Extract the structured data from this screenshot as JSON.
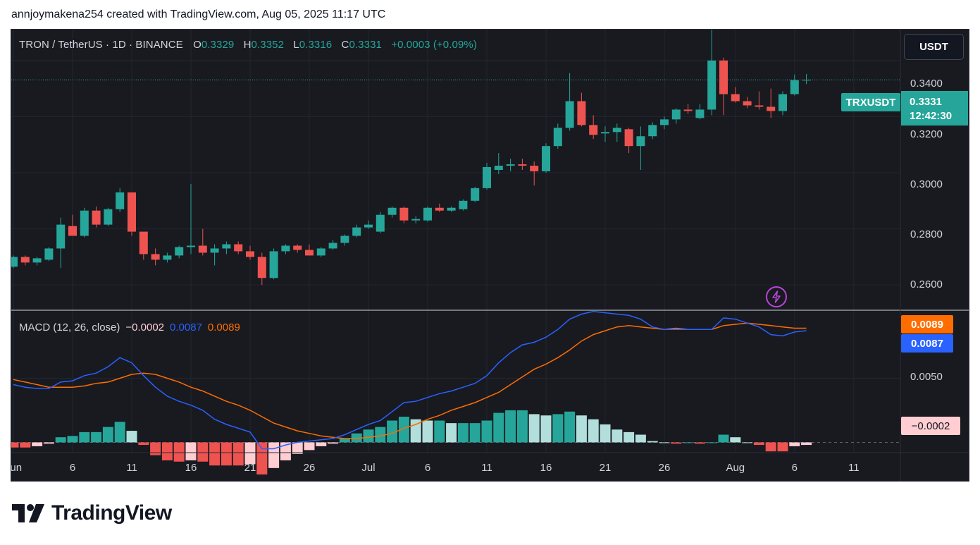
{
  "caption": "annjoymakena254 created with TradingView.com, Aug 05, 2025 11:17 UTC",
  "legend": {
    "symbol_line": "TRON / TetherUS · 1D · BINANCE",
    "o_label": "O",
    "o_value": "0.3329",
    "h_label": "H",
    "h_value": "0.3352",
    "l_label": "L",
    "l_value": "0.3316",
    "c_label": "C",
    "c_value": "0.3331",
    "change": "+0.0003 (+0.09%)"
  },
  "currency_button": "USDT",
  "symbol_badge": "TRXUSDT",
  "last_price": "0.3331",
  "countdown": "12:42:30",
  "macd_legend": {
    "title": "MACD (12, 26, close)",
    "hist": "−0.0002",
    "macd": "0.0087",
    "signal": "0.0089"
  },
  "badges": {
    "signal": "0.0089",
    "macd": "0.0087",
    "hist": "−0.0002"
  },
  "price_ticks": [
    "0.3400",
    "0.3200",
    "0.3000",
    "0.2800",
    "0.2600"
  ],
  "macd_ticks": [
    "0.0050"
  ],
  "x_ticks": [
    "Jun",
    "6",
    "11",
    "16",
    "21",
    "26",
    "Jul",
    "6",
    "11",
    "16",
    "21",
    "26",
    "Aug",
    "6",
    "11"
  ],
  "brand": "TradingView",
  "colors": {
    "up": "#26a69a",
    "down": "#ef5350",
    "macd": "#2962ff",
    "signal": "#ff6d00",
    "hist_up_strong": "#26a69a",
    "hist_up_weak": "#b2dfdb",
    "hist_down_strong": "#ef5350",
    "hist_down_weak": "#ffcdd2"
  },
  "chart_data": {
    "type": "candlestick",
    "title": "TRON / TetherUS · 1D · BINANCE",
    "start_date": "2025-06-01",
    "ylim": [
      0.251,
      0.351
    ],
    "x_tick_dates": [
      "2025-06-01",
      "2025-06-06",
      "2025-06-11",
      "2025-06-16",
      "2025-06-21",
      "2025-06-26",
      "2025-07-01",
      "2025-07-06",
      "2025-07-11",
      "2025-07-16",
      "2025-07-21",
      "2025-07-26",
      "2025-08-01",
      "2025-08-06",
      "2025-08-11"
    ],
    "ohlc": [
      [
        0.2665,
        0.2705,
        0.266,
        0.27
      ],
      [
        0.27,
        0.2705,
        0.267,
        0.268
      ],
      [
        0.268,
        0.27,
        0.267,
        0.2695
      ],
      [
        0.269,
        0.2735,
        0.2685,
        0.273
      ],
      [
        0.273,
        0.284,
        0.266,
        0.2815
      ],
      [
        0.281,
        0.285,
        0.2775,
        0.2775
      ],
      [
        0.2775,
        0.2875,
        0.277,
        0.2865
      ],
      [
        0.2865,
        0.288,
        0.2805,
        0.2815
      ],
      [
        0.2815,
        0.2875,
        0.281,
        0.287
      ],
      [
        0.287,
        0.2945,
        0.286,
        0.293
      ],
      [
        0.293,
        0.293,
        0.2775,
        0.279
      ],
      [
        0.279,
        0.2785,
        0.269,
        0.271
      ],
      [
        0.271,
        0.273,
        0.267,
        0.269
      ],
      [
        0.269,
        0.2715,
        0.268,
        0.2705
      ],
      [
        0.2705,
        0.274,
        0.2695,
        0.2735
      ],
      [
        0.2735,
        0.296,
        0.271,
        0.274
      ],
      [
        0.274,
        0.28,
        0.2705,
        0.2715
      ],
      [
        0.2715,
        0.2745,
        0.267,
        0.273
      ],
      [
        0.273,
        0.2755,
        0.271,
        0.2745
      ],
      [
        0.2745,
        0.2755,
        0.271,
        0.272
      ],
      [
        0.272,
        0.274,
        0.269,
        0.27
      ],
      [
        0.27,
        0.2715,
        0.26,
        0.2625
      ],
      [
        0.2625,
        0.273,
        0.262,
        0.272
      ],
      [
        0.272,
        0.2745,
        0.271,
        0.274
      ],
      [
        0.274,
        0.2745,
        0.2715,
        0.2725
      ],
      [
        0.2725,
        0.2745,
        0.271,
        0.2705
      ],
      [
        0.2705,
        0.2735,
        0.27,
        0.273
      ],
      [
        0.273,
        0.276,
        0.2725,
        0.275
      ],
      [
        0.275,
        0.278,
        0.274,
        0.2775
      ],
      [
        0.2775,
        0.2815,
        0.277,
        0.2805
      ],
      [
        0.2805,
        0.283,
        0.28,
        0.2815
      ],
      [
        0.279,
        0.286,
        0.2785,
        0.285
      ],
      [
        0.285,
        0.288,
        0.284,
        0.2875
      ],
      [
        0.2875,
        0.288,
        0.282,
        0.283
      ],
      [
        0.283,
        0.2845,
        0.282,
        0.2835
      ],
      [
        0.283,
        0.288,
        0.2825,
        0.2875
      ],
      [
        0.2875,
        0.289,
        0.286,
        0.2865
      ],
      [
        0.2865,
        0.288,
        0.286,
        0.2875
      ],
      [
        0.287,
        0.2905,
        0.2865,
        0.29
      ],
      [
        0.29,
        0.295,
        0.2895,
        0.2945
      ],
      [
        0.2945,
        0.3035,
        0.294,
        0.302
      ],
      [
        0.301,
        0.307,
        0.2995,
        0.3025
      ],
      [
        0.3025,
        0.305,
        0.3005,
        0.303
      ],
      [
        0.303,
        0.305,
        0.301,
        0.3025
      ],
      [
        0.3025,
        0.304,
        0.2955,
        0.3005
      ],
      [
        0.3005,
        0.3105,
        0.3,
        0.3095
      ],
      [
        0.3095,
        0.3175,
        0.3085,
        0.316
      ],
      [
        0.316,
        0.3355,
        0.315,
        0.3255
      ],
      [
        0.3255,
        0.3285,
        0.3165,
        0.317
      ],
      [
        0.317,
        0.3205,
        0.312,
        0.3135
      ],
      [
        0.314,
        0.3165,
        0.311,
        0.3145
      ],
      [
        0.3145,
        0.3175,
        0.311,
        0.316
      ],
      [
        0.3155,
        0.316,
        0.307,
        0.3095
      ],
      [
        0.3095,
        0.3165,
        0.301,
        0.313
      ],
      [
        0.313,
        0.318,
        0.312,
        0.317
      ],
      [
        0.317,
        0.32,
        0.3155,
        0.319
      ],
      [
        0.319,
        0.323,
        0.3175,
        0.3225
      ],
      [
        0.3225,
        0.3245,
        0.321,
        0.322
      ],
      [
        0.3195,
        0.3245,
        0.319,
        0.3225
      ],
      [
        0.3225,
        0.351,
        0.3205,
        0.34
      ],
      [
        0.34,
        0.341,
        0.3205,
        0.328
      ],
      [
        0.328,
        0.3305,
        0.325,
        0.3255
      ],
      [
        0.3255,
        0.327,
        0.323,
        0.324
      ],
      [
        0.324,
        0.329,
        0.3225,
        0.3235
      ],
      [
        0.3235,
        0.33,
        0.3195,
        0.322
      ],
      [
        0.322,
        0.329,
        0.3205,
        0.328
      ],
      [
        0.328,
        0.335,
        0.3275,
        0.333
      ],
      [
        0.3329,
        0.3352,
        0.3316,
        0.3331
      ]
    ],
    "macd_ylim": [
      -0.0008,
      0.0103
    ],
    "macd": [
      0.0045,
      0.0043,
      0.0042,
      0.0042,
      0.0047,
      0.0048,
      0.0052,
      0.0054,
      0.0059,
      0.0066,
      0.0062,
      0.0052,
      0.0043,
      0.0036,
      0.0032,
      0.0029,
      0.0025,
      0.0018,
      0.0014,
      0.0011,
      0.0008,
      -0.0005,
      -0.0005,
      -0.0002,
      0.0,
      0.0001,
      0.0002,
      0.0003,
      0.0006,
      0.001,
      0.0014,
      0.0017,
      0.0024,
      0.0031,
      0.0032,
      0.0035,
      0.0038,
      0.004,
      0.0043,
      0.0046,
      0.0052,
      0.0062,
      0.007,
      0.0076,
      0.0078,
      0.0082,
      0.0088,
      0.0096,
      0.01,
      0.0102,
      0.0101,
      0.01,
      0.0099,
      0.0096,
      0.009,
      0.0088,
      0.0088,
      0.0088,
      0.0088,
      0.0088,
      0.0097,
      0.0096,
      0.0093,
      0.009,
      0.0084,
      0.0083,
      0.0086,
      0.0087
    ],
    "signal": [
      0.0049,
      0.0047,
      0.0045,
      0.0043,
      0.0043,
      0.0043,
      0.0044,
      0.0046,
      0.0047,
      0.005,
      0.0053,
      0.0054,
      0.0053,
      0.005,
      0.0047,
      0.0043,
      0.004,
      0.0036,
      0.0032,
      0.0029,
      0.0025,
      0.002,
      0.0015,
      0.0012,
      0.0009,
      0.0007,
      0.0005,
      0.0004,
      0.0003,
      0.0003,
      0.0004,
      0.0005,
      0.0007,
      0.0011,
      0.0014,
      0.0018,
      0.0021,
      0.0025,
      0.0028,
      0.0031,
      0.0035,
      0.0039,
      0.0045,
      0.0051,
      0.0057,
      0.0061,
      0.0066,
      0.0072,
      0.0079,
      0.0084,
      0.0087,
      0.009,
      0.0091,
      0.009,
      0.0089,
      0.0088,
      0.0089,
      0.0088,
      0.0088,
      0.0088,
      0.0091,
      0.0092,
      0.0093,
      0.0092,
      0.0091,
      0.009,
      0.0089,
      0.0089
    ],
    "histogram": [
      -0.0004,
      -0.0004,
      -0.0003,
      -0.0001,
      0.0004,
      0.0005,
      0.0008,
      0.0008,
      0.0012,
      0.0016,
      0.0009,
      -0.0002,
      -0.001,
      -0.0014,
      -0.0015,
      -0.0014,
      -0.0015,
      -0.0018,
      -0.0018,
      -0.0018,
      -0.0017,
      -0.0025,
      -0.002,
      -0.0014,
      -0.0009,
      -0.0006,
      -0.0003,
      -0.0001,
      0.0003,
      0.0007,
      0.001,
      0.0012,
      0.0017,
      0.002,
      0.0018,
      0.0017,
      0.0017,
      0.0015,
      0.0015,
      0.0015,
      0.0017,
      0.0023,
      0.0025,
      0.0025,
      0.0022,
      0.0021,
      0.0022,
      0.0024,
      0.0021,
      0.0018,
      0.0014,
      0.001,
      0.0008,
      0.0006,
      0.0001,
      0.0,
      -0.0001,
      0.0,
      -0.0001,
      0.0,
      0.0006,
      0.0004,
      0.0,
      -0.0002,
      -0.0007,
      -0.0007,
      -0.0003,
      -0.0002
    ]
  }
}
